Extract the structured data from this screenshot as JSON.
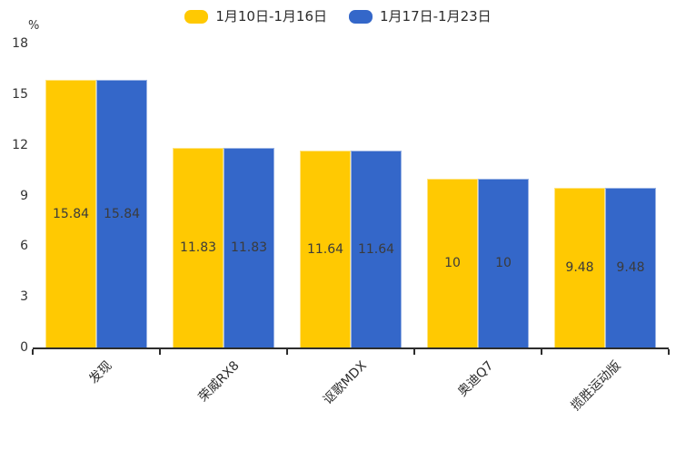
{
  "chart_data": {
    "type": "bar",
    "ylabel": "%",
    "ylim": [
      0,
      18
    ],
    "yticks": [
      0,
      3,
      6,
      9,
      12,
      15,
      18
    ],
    "grid": false,
    "legend_position": "top",
    "label_rotation": 45,
    "categories": [
      "发现",
      "荣威RX8",
      "讴歌MDX",
      "奥迪Q7",
      "揽胜运动版"
    ],
    "series": [
      {
        "name": "1月10日-1月16日",
        "color": "#FFC902",
        "values": [
          15.84,
          11.83,
          11.64,
          10,
          9.48
        ],
        "labels": [
          "15.84",
          "11.83",
          "11.64",
          "10",
          "9.48"
        ]
      },
      {
        "name": "1月17日-1月23日",
        "color": "#3467C9",
        "values": [
          15.84,
          11.83,
          11.64,
          10,
          9.48
        ],
        "labels": [
          "15.84",
          "11.83",
          "11.64",
          "10",
          "9.48"
        ]
      }
    ],
    "value_label_color": "#3b3b3b",
    "axis_color": "#2d2d2d"
  }
}
